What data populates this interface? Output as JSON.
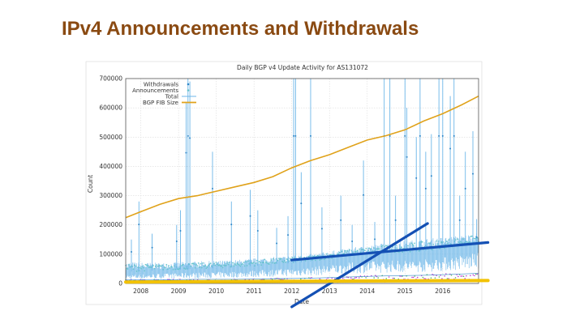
{
  "slide": {
    "title": "IPv4 Announcements and Withdrawals"
  },
  "chart_data": {
    "type": "line",
    "title": "Daily BGP v4 Update Activity for AS131072",
    "xlabel": "Date",
    "ylabel": "Count",
    "xlim": [
      2007.6,
      2016.95
    ],
    "ylim": [
      0,
      700000
    ],
    "x_ticks": [
      "2008",
      "2009",
      "2010",
      "2011",
      "2012",
      "2013",
      "2014",
      "2015",
      "2016"
    ],
    "y_ticks": [
      "0",
      "100000",
      "200000",
      "300000",
      "400000",
      "500000",
      "600000",
      "700000"
    ],
    "grid": true,
    "legend_position": "top-left",
    "legend": [
      "Withdrawals",
      "Announcements",
      "Total",
      "BGP FIB Size"
    ],
    "colors": {
      "withdrawals": "#2e86c8",
      "announcements": "#63c2c9",
      "total": "#6cb6e8",
      "fib": "#e0a21a",
      "low_series": "#b01ec8",
      "overlay_line": "#1450b4",
      "baseline": "#f2c200",
      "title": "#8a4a12"
    },
    "series": [
      {
        "name": "BGP FIB Size",
        "x": [
          2007.6,
          2008.0,
          2008.5,
          2009.0,
          2009.5,
          2010.0,
          2010.5,
          2011.0,
          2011.5,
          2012.0,
          2012.5,
          2013.0,
          2013.5,
          2014.0,
          2014.5,
          2015.0,
          2015.5,
          2016.0,
          2016.5,
          2016.95
        ],
        "values": [
          225000,
          245000,
          270000,
          290000,
          300000,
          315000,
          330000,
          345000,
          365000,
          395000,
          420000,
          440000,
          465000,
          490000,
          505000,
          525000,
          555000,
          580000,
          610000,
          640000
        ]
      },
      {
        "name": "Total (baseline)",
        "x": [
          2007.6,
          2008.5,
          2009.5,
          2010.5,
          2011.5,
          2012.5,
          2013.5,
          2014.5,
          2015.5,
          2016.0,
          2016.5,
          2016.95
        ],
        "values": [
          40000,
          45000,
          50000,
          55000,
          65000,
          75000,
          95000,
          105000,
          110000,
          120000,
          130000,
          140000
        ]
      },
      {
        "name": "Total (spikes)",
        "x": [
          2007.75,
          2007.95,
          2008.3,
          2008.95,
          2009.05,
          2009.2,
          2009.25,
          2009.3,
          2009.9,
          2010.4,
          2010.9,
          2011.1,
          2011.6,
          2011.9,
          2012.05,
          2012.1,
          2012.25,
          2012.5,
          2012.8,
          2013.3,
          2013.6,
          2013.9,
          2014.2,
          2014.45,
          2014.6,
          2014.75,
          2015.0,
          2015.05,
          2015.3,
          2015.4,
          2015.55,
          2015.7,
          2015.9,
          2016.0,
          2016.2,
          2016.3,
          2016.45,
          2016.6,
          2016.8,
          2016.9
        ],
        "values": [
          150000,
          280000,
          170000,
          200000,
          250000,
          620000,
          700000,
          690000,
          450000,
          280000,
          320000,
          250000,
          190000,
          230000,
          700000,
          700000,
          380000,
          700000,
          260000,
          300000,
          200000,
          420000,
          210000,
          700000,
          700000,
          300000,
          700000,
          600000,
          500000,
          700000,
          450000,
          510000,
          700000,
          700000,
          640000,
          700000,
          300000,
          450000,
          520000,
          220000
        ]
      },
      {
        "name": "Announcements (upper band)",
        "x": [
          2007.6,
          2008.5,
          2009.5,
          2010.5,
          2011.5,
          2012.5,
          2013.5,
          2014.5,
          2015.5,
          2016.5,
          2016.95
        ],
        "values": [
          60000,
          60000,
          65000,
          70000,
          80000,
          90000,
          110000,
          125000,
          135000,
          150000,
          160000
        ]
      },
      {
        "name": "Withdrawals",
        "x": [
          2007.6,
          2008.5,
          2009.5,
          2010.5,
          2011.5,
          2012.5,
          2013.5,
          2014.5,
          2015.5,
          2016.5,
          2016.95
        ],
        "values": [
          12000,
          12000,
          14000,
          14000,
          16000,
          18000,
          22000,
          26000,
          28000,
          32000,
          35000
        ]
      }
    ],
    "overlay_lines": [
      {
        "name": "steep trend line",
        "x": [
          2012.0,
          2015.6
        ],
        "values": [
          -80000,
          205000
        ]
      },
      {
        "name": "shallow trend line",
        "x": [
          2012.0,
          2017.2
        ],
        "values": [
          80000,
          140000
        ]
      },
      {
        "name": "flat baseline",
        "x": [
          2007.6,
          2017.2
        ],
        "values": [
          5000,
          10000
        ]
      }
    ]
  }
}
